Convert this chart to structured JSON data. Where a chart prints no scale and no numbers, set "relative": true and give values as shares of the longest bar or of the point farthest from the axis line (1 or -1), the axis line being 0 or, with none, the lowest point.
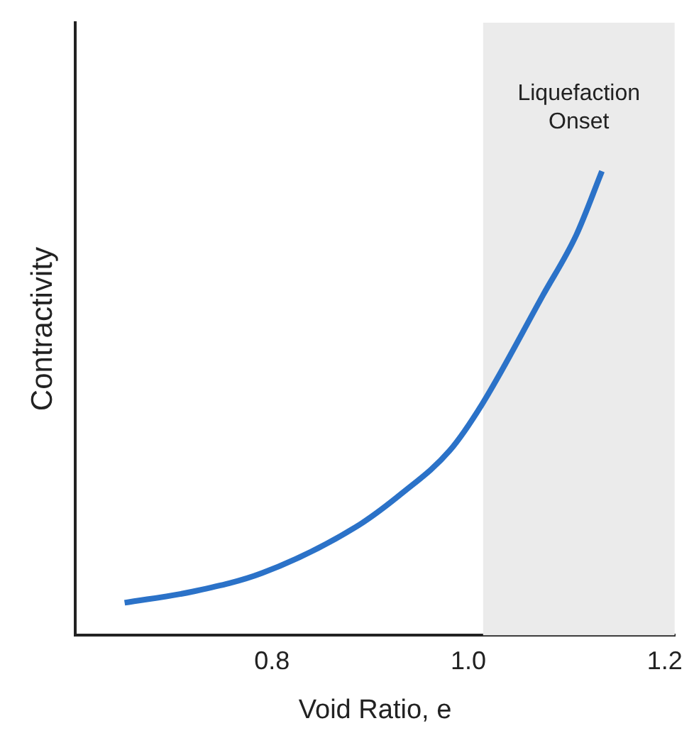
{
  "chart_data": {
    "type": "line",
    "xlabel": "Void Ratio, e",
    "ylabel": "Contractivity",
    "relative": true,
    "xlim": [
      0.6,
      1.21
    ],
    "xticks": [
      {
        "value": 0.8,
        "label": "0.8"
      },
      {
        "value": 1.0,
        "label": "1.0"
      },
      {
        "value": 1.2,
        "label": "1.2"
      }
    ],
    "grid": false,
    "legend": false,
    "marker": "none",
    "line_style": "solid",
    "series": [
      {
        "color": "#2b72c8",
        "x": [
          0.65,
          0.719,
          0.79,
          0.886,
          0.933,
          0.981,
          1.014,
          1.076,
          1.11,
          1.136
        ],
        "values": [
          0.07,
          0.094,
          0.134,
          0.234,
          0.307,
          0.398,
          0.498,
          0.733,
          0.863,
          1
        ]
      }
    ],
    "bands": [
      {
        "axis": "x",
        "from": 1.015,
        "to": 1.21,
        "label": "Liquefaction Onset",
        "color": "#ebebeb"
      }
    ]
  }
}
